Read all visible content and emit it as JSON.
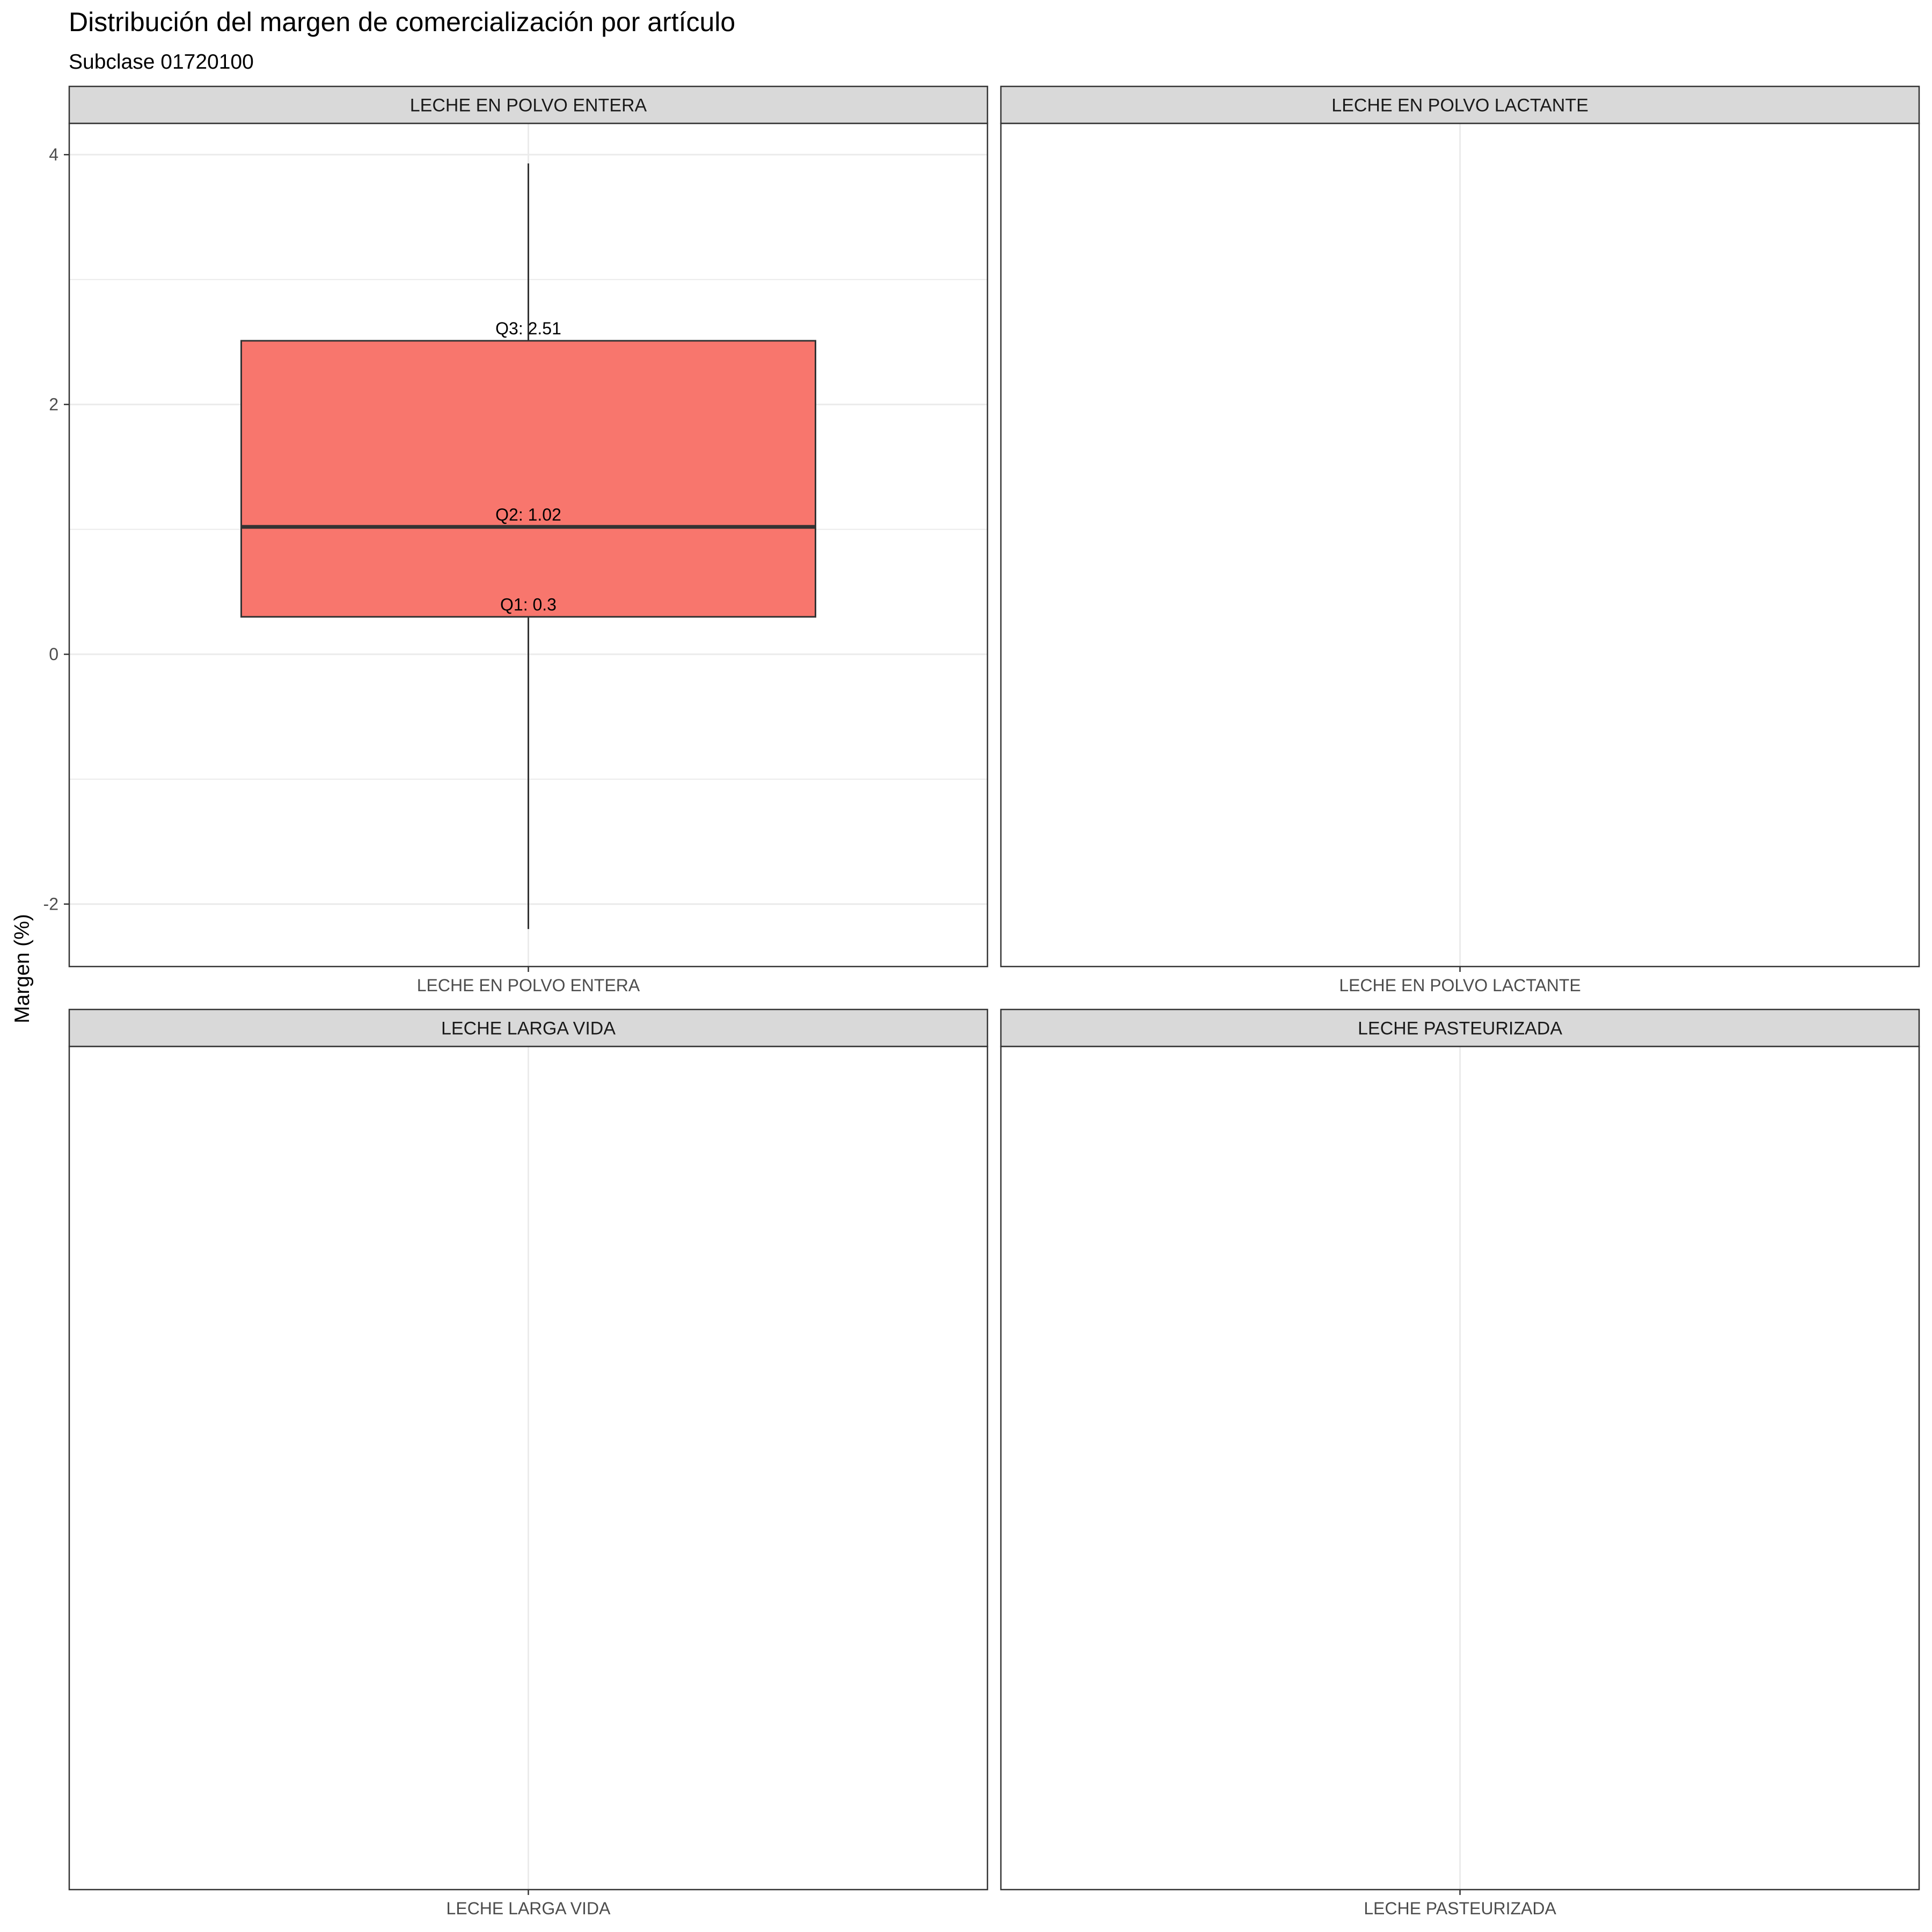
{
  "chart_data": {
    "type": "boxplot",
    "title": "Distribución del margen de comercialización por artículo",
    "subtitle": "Subclase 01720100",
    "ylabel": "Margen (%)",
    "ylim": [
      -2.5,
      4.25
    ],
    "y_ticks": [
      -2,
      0,
      2,
      4
    ],
    "y_tick_labels": [
      "-2",
      "0",
      "2",
      "4"
    ],
    "grid": true,
    "box_color": "#F8766D",
    "panels": [
      {
        "strip": "LECHE EN POLVO ENTERA",
        "category": "LECHE EN POLVO ENTERA",
        "has_data": true,
        "stats": {
          "min": -2.2,
          "q1": 0.3,
          "median": 1.02,
          "q3": 2.51,
          "max": 3.93
        },
        "labels": {
          "q1": "Q1: 0.3",
          "q2": "Q2: 1.02",
          "q3": "Q3: 2.51"
        }
      },
      {
        "strip": "LECHE EN POLVO LACTANTE",
        "category": "LECHE EN POLVO LACTANTE",
        "has_data": false
      },
      {
        "strip": "LECHE LARGA VIDA",
        "category": "LECHE LARGA VIDA",
        "has_data": false
      },
      {
        "strip": "LECHE PASTEURIZADA",
        "category": "LECHE PASTEURIZADA",
        "has_data": false
      }
    ]
  }
}
